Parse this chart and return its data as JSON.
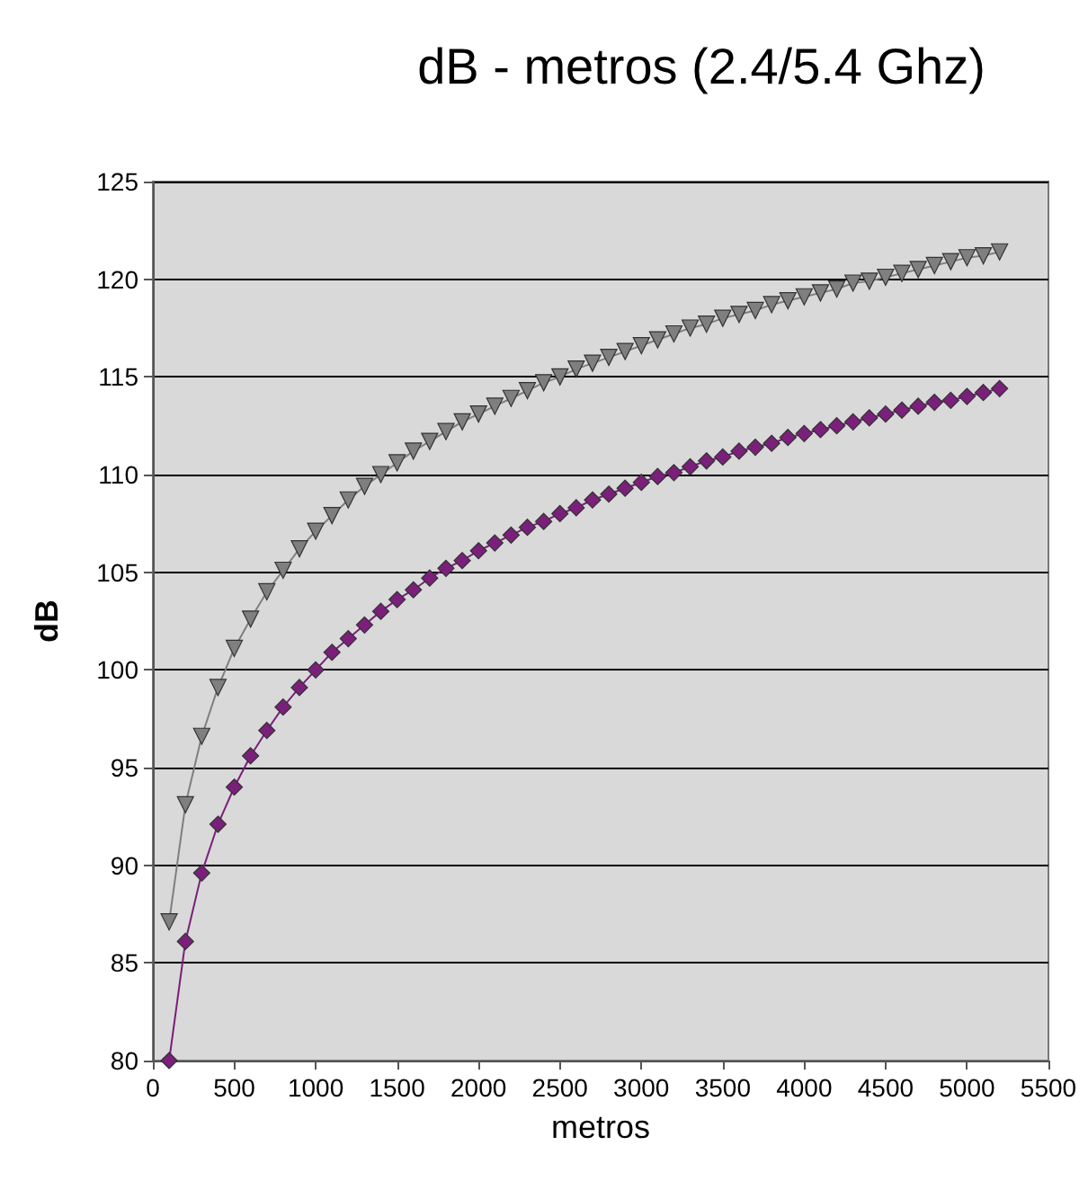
{
  "chart_data": {
    "type": "line",
    "title": "dB - metros (2.4/5.4 Ghz)",
    "xlabel": "metros",
    "ylabel": "dB",
    "x": [
      100,
      200,
      300,
      400,
      500,
      600,
      700,
      800,
      900,
      1000,
      1100,
      1200,
      1300,
      1400,
      1500,
      1600,
      1700,
      1800,
      1900,
      2000,
      2100,
      2200,
      2300,
      2400,
      2500,
      2600,
      2700,
      2800,
      2900,
      3000,
      3100,
      3200,
      3300,
      3400,
      3500,
      3600,
      3700,
      3800,
      3900,
      4000,
      4100,
      4200,
      4300,
      4400,
      4500,
      4600,
      4700,
      4800,
      4900,
      5000,
      5100,
      5200
    ],
    "series": [
      {
        "color": "#7f7f7f",
        "marker": "triangle",
        "values": [
          87.1,
          93.1,
          96.6,
          99.1,
          101.1,
          102.6,
          104.0,
          105.1,
          106.2,
          107.1,
          107.9,
          108.7,
          109.4,
          110.0,
          110.6,
          111.2,
          111.7,
          112.2,
          112.7,
          113.1,
          113.5,
          113.9,
          114.3,
          114.7,
          115.0,
          115.4,
          115.7,
          116.0,
          116.3,
          116.6,
          116.9,
          117.2,
          117.5,
          117.7,
          118.0,
          118.2,
          118.4,
          118.7,
          118.9,
          119.1,
          119.3,
          119.5,
          119.8,
          119.9,
          120.1,
          120.3,
          120.5,
          120.7,
          120.9,
          121.1,
          121.2,
          121.4
        ]
      },
      {
        "color": "#7a1f7a",
        "marker": "diamond",
        "values": [
          80.0,
          86.1,
          89.6,
          92.1,
          94.0,
          95.6,
          96.9,
          98.1,
          99.1,
          100.0,
          100.9,
          101.6,
          102.3,
          103.0,
          103.6,
          104.1,
          104.7,
          105.2,
          105.6,
          106.1,
          106.5,
          106.9,
          107.3,
          107.6,
          108.0,
          108.3,
          108.7,
          109.0,
          109.3,
          109.6,
          109.9,
          110.1,
          110.4,
          110.7,
          110.9,
          111.2,
          111.4,
          111.6,
          111.9,
          112.1,
          112.3,
          112.5,
          112.7,
          112.9,
          113.1,
          113.3,
          113.5,
          113.7,
          113.8,
          114.0,
          114.2,
          114.4
        ]
      }
    ],
    "xlim": [
      0,
      5500
    ],
    "xticks": [
      0,
      500,
      1000,
      1500,
      2000,
      2500,
      3000,
      3500,
      4000,
      4500,
      5000,
      5500
    ],
    "ylim": [
      80,
      125
    ],
    "yticks": [
      80,
      85,
      90,
      95,
      100,
      105,
      110,
      115,
      120,
      125
    ],
    "grid": "y",
    "line_style": "solid"
  }
}
